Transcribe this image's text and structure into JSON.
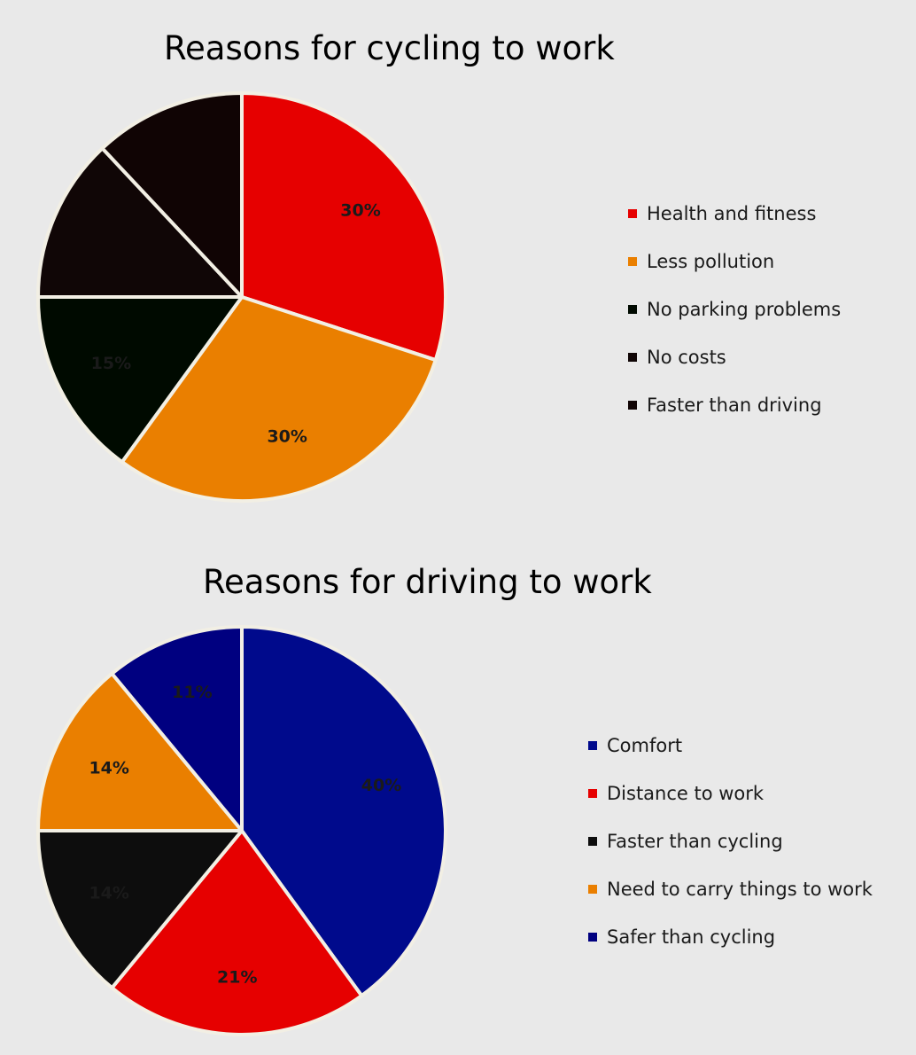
{
  "chart_data": [
    {
      "type": "pie",
      "title": "Reasons for cycling to work",
      "labels": [
        "Health and fitness",
        "Less pollution",
        "No parking problems",
        "No costs",
        "Faster than driving"
      ],
      "values": [
        30,
        30,
        15,
        13,
        12
      ],
      "data_labels": [
        "30%",
        "30%",
        "15%",
        "",
        ""
      ],
      "colors": [
        "#e60000",
        "#ea7f00",
        "#000a00",
        "#100606",
        "#100404"
      ],
      "start_angle": "12 o'clock",
      "direction": "clockwise",
      "legend_position": "right"
    },
    {
      "type": "pie",
      "title": "Reasons for driving to work",
      "labels": [
        "Comfort",
        "Distance to work",
        "Faster than cycling",
        "Need to carry things to work",
        "Safer than cycling"
      ],
      "values": [
        40,
        21,
        14,
        14,
        11
      ],
      "data_labels": [
        "40%",
        "21%",
        "14%",
        "14%",
        "11%"
      ],
      "colors": [
        "#000a8c",
        "#e60000",
        "#0d0d0d",
        "#ea7f00",
        "#000080"
      ],
      "start_angle": "12 o'clock",
      "direction": "clockwise",
      "legend_position": "right"
    }
  ]
}
